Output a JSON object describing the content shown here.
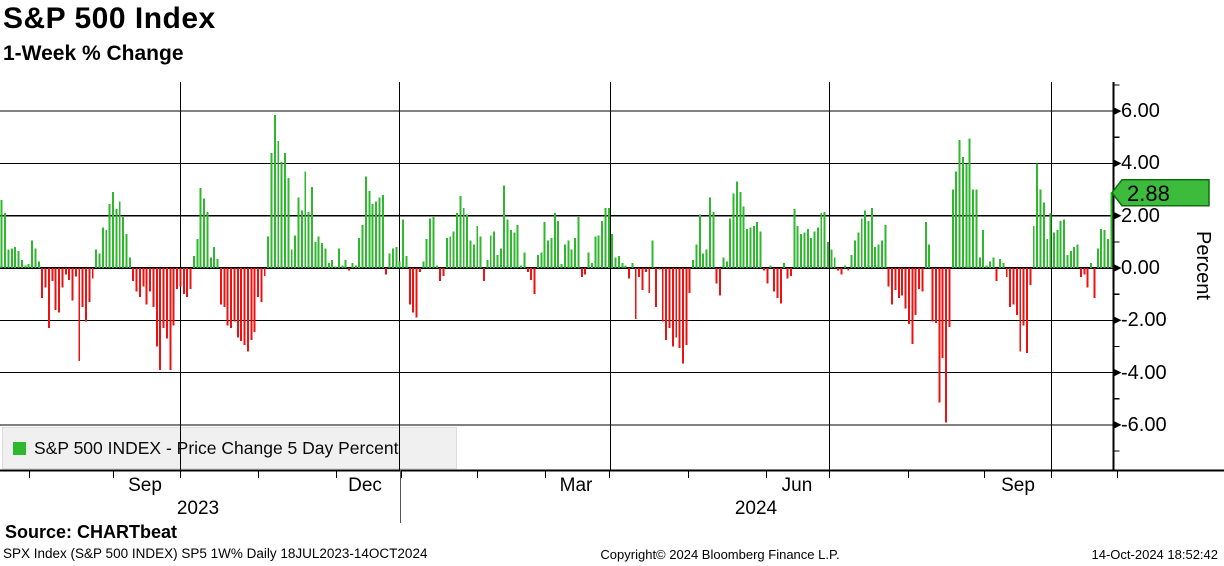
{
  "header": {
    "title": "S&P 500 Index",
    "subtitle": "1-Week % Change"
  },
  "legend": {
    "series_label": "S&P 500 INDEX - Price Change 5 Day Percent"
  },
  "y_axis": {
    "label": "Percent",
    "tick_labels": [
      "6.00",
      "4.00",
      "2.00",
      "0.00",
      "-2.00",
      "-4.00",
      "-6.00"
    ],
    "badge_value": "2.88"
  },
  "x_axis": {
    "month_labels": [
      "Sep",
      "Dec",
      "Mar",
      "Jun",
      "Sep"
    ],
    "year_labels": [
      "2023",
      "2024"
    ]
  },
  "footer": {
    "source": "Source: CHARTbeat",
    "meta": "SPX Index (S&P 500 INDEX) SP5 1W%  Daily 18JUL2023-14OCT2024",
    "copyright": "Copyright© 2024 Bloomberg Finance L.P.",
    "timestamp": "14-Oct-2024 18:52:42"
  },
  "colors": {
    "positive": "#2eb82e",
    "negative": "#ee1111",
    "badge_fill": "#3cbb3c",
    "badge_border": "#0f6e0f",
    "grid": "#000000"
  },
  "chart_data": {
    "type": "bar",
    "title": "S&P 500 Index — 1-Week % Change",
    "series_name": "S&P 500 INDEX - Price Change 5 Day Percent",
    "xlabel": "",
    "ylabel": "Percent",
    "x_range": "18JUL2023-14OCT2024",
    "frequency": "daily",
    "ylim": [
      -7.2,
      7.2
    ],
    "ytick_values": [
      6,
      4,
      2,
      0,
      -2,
      -4,
      -6
    ],
    "grid": "on",
    "legend_position": "bottom-left",
    "last_value": 2.88,
    "values": [
      2.6,
      2.1,
      0.7,
      0.75,
      0.8,
      0.65,
      0.3,
      0.1,
      0.15,
      1.05,
      0.75,
      0.25,
      -1.15,
      -0.75,
      -2.3,
      -0.5,
      -1.6,
      -1.7,
      -0.75,
      -0.25,
      -0.45,
      -1.25,
      -0.33,
      -3.55,
      -1.5,
      -2.05,
      -1.3,
      -0.4,
      0.7,
      0.55,
      1.55,
      1.45,
      2.45,
      2.9,
      2.25,
      2.55,
      1.95,
      1.3,
      0.4,
      -0.5,
      -0.9,
      -1.1,
      -0.7,
      -1.4,
      -0.9,
      -1.5,
      -3.0,
      -3.9,
      -2.3,
      -2.7,
      -3.9,
      -2.2,
      -0.8,
      -0.7,
      -1.0,
      -1.1,
      -0.8,
      0.45,
      1.1,
      3.05,
      2.65,
      2.15,
      0.4,
      0.8,
      0.35,
      -1.4,
      -1.5,
      -2.2,
      -2.3,
      -2.05,
      -2.65,
      -2.8,
      -2.95,
      -3.2,
      -2.75,
      -2.45,
      -1.1,
      -1.3,
      -0.3,
      1.2,
      4.4,
      5.85,
      4.85,
      4.05,
      4.4,
      3.45,
      0.7,
      1.25,
      2.7,
      2.2,
      3.7,
      2.15,
      3.1,
      1.0,
      1.2,
      0.95,
      0.75,
      0.2,
      0.3,
      0.05,
      0.75,
      0.1,
      0.3,
      -0.1,
      0.2,
      0.1,
      1.15,
      1.65,
      3.5,
      2.95,
      2.45,
      2.55,
      2.7,
      2.8,
      -0.25,
      0.55,
      0.75,
      0.8,
      0.25,
      1.85,
      0.45,
      -1.4,
      -1.7,
      -1.9,
      -0.15,
      0.25,
      1.1,
      1.9,
      1.95,
      0.1,
      -0.5,
      -0.3,
      1.15,
      1.2,
      1.4,
      2.1,
      2.75,
      2.3,
      2.05,
      1.05,
      0.9,
      1.6,
      1.2,
      -0.5,
      0.3,
      1.25,
      1.4,
      0.5,
      0.75,
      3.15,
      1.85,
      1.45,
      1.35,
      1.65,
      0.1,
      0.6,
      -0.15,
      -0.45,
      -1.0,
      0.5,
      0.6,
      1.75,
      1.05,
      1.15,
      2.1,
      1.8,
      0.15,
      0.9,
      1.05,
      0.7,
      1.15,
      1.95,
      -0.35,
      -0.25,
      0.6,
      0.2,
      1.2,
      1.25,
      1.8,
      2.3,
      2.3,
      1.3,
      0.4,
      0.45,
      0.2,
      0.1,
      -0.4,
      0.2,
      -1.95,
      -0.35,
      -0.85,
      -0.15,
      -0.95,
      1.05,
      -1.5,
      -0.05,
      -2.05,
      -2.75,
      -2.3,
      -3.0,
      -2.65,
      -3.05,
      -3.65,
      -2.95,
      -0.95,
      0.3,
      0.9,
      2.05,
      0.55,
      0.7,
      2.7,
      2.15,
      -0.6,
      -1.05,
      0.4,
      0.25,
      1.9,
      2.85,
      3.3,
      2.9,
      2.35,
      1.5,
      1.55,
      1.6,
      1.75,
      1.4,
      -0.1,
      -0.6,
      0.1,
      -0.9,
      -1.15,
      -1.35,
      0.2,
      -0.4,
      -0.3,
      2.25,
      1.6,
      1.3,
      1.35,
      1.5,
      1.15,
      1.4,
      1.55,
      2.1,
      2.15,
      1.0,
      0.7,
      0.4,
      -0.1,
      -0.25,
      0.1,
      -0.1,
      0.5,
      1.05,
      1.35,
      1.9,
      2.2,
      1.8,
      2.3,
      0.8,
      0.9,
      1.05,
      1.65,
      -0.7,
      -1.4,
      -0.85,
      -1.15,
      -1.05,
      -1.55,
      -2.15,
      -2.9,
      -1.8,
      -0.8,
      -0.9,
      1.75,
      0.9,
      -2.05,
      -2.1,
      -5.15,
      -3.45,
      -5.9,
      -2.25,
      3.0,
      3.7,
      4.9,
      4.25,
      4.0,
      4.95,
      3.0,
      3.0,
      0.4,
      1.45,
      0.1,
      0.25,
      0.4,
      -0.5,
      0.35,
      0.2,
      -0.35,
      -1.5,
      -1.4,
      -1.8,
      -3.2,
      -2.2,
      -3.25,
      -0.65,
      1.6,
      4.0,
      3.0,
      2.5,
      1.1,
      2.1,
      1.35,
      1.45,
      1.8,
      1.85,
      0.5,
      0.65,
      0.8,
      0.9,
      -0.35,
      -0.25,
      -0.75,
      0.2,
      -1.15,
      0.75,
      1.5,
      1.45,
      1.1,
      2.88
    ]
  }
}
